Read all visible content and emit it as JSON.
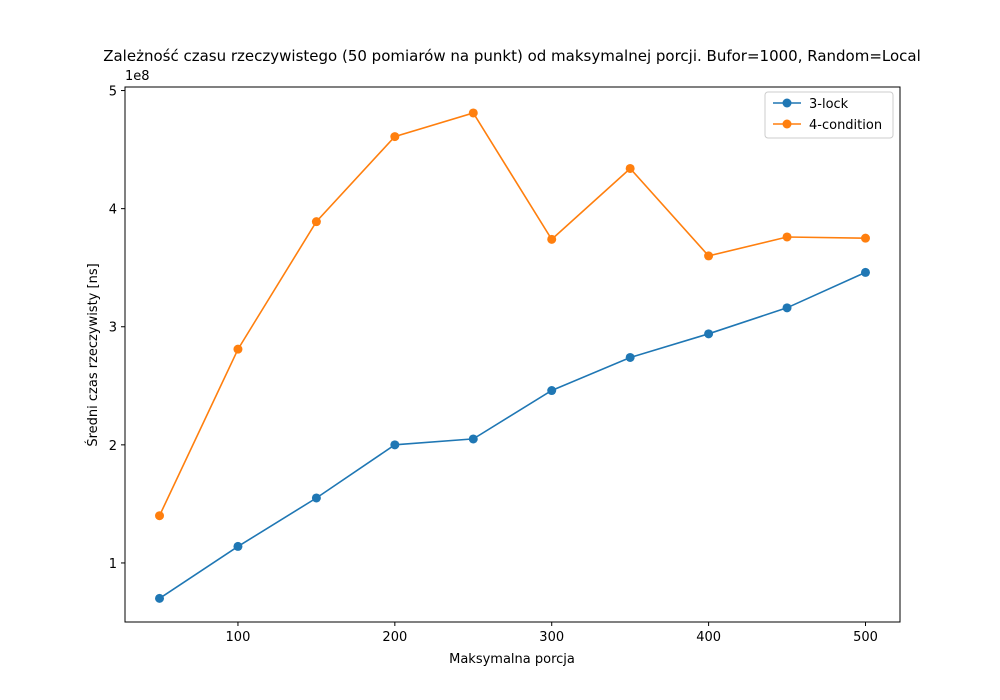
{
  "chart_data": {
    "type": "line",
    "title": "Zależność czasu rzeczywistego (50 pomiarów na punkt) od maksymalnej porcji. Bufor=1000, Random=Local",
    "xlabel": "Maksymalna porcja",
    "ylabel": "Średni czas rzeczywisty [ns]",
    "y_offset_label": "1e8",
    "x": [
      50,
      100,
      150,
      200,
      250,
      300,
      350,
      400,
      450,
      500
    ],
    "xlim": [
      28,
      522
    ],
    "ylim": [
      0.5,
      5.03
    ],
    "y_scale_factor": 100000000,
    "x_ticks": [
      100,
      200,
      300,
      400,
      500
    ],
    "y_ticks": [
      1,
      2,
      3,
      4,
      5
    ],
    "grid": false,
    "legend_position": "top-right",
    "series": [
      {
        "name": "3-lock",
        "color": "#1f77b4",
        "values": [
          0.7,
          1.14,
          1.55,
          2.0,
          2.05,
          2.46,
          2.74,
          2.94,
          3.16,
          3.46
        ]
      },
      {
        "name": "4-condition",
        "color": "#ff7f0e",
        "values": [
          1.4,
          2.81,
          3.89,
          4.61,
          4.81,
          3.74,
          4.34,
          3.6,
          3.76,
          3.75
        ]
      }
    ]
  }
}
